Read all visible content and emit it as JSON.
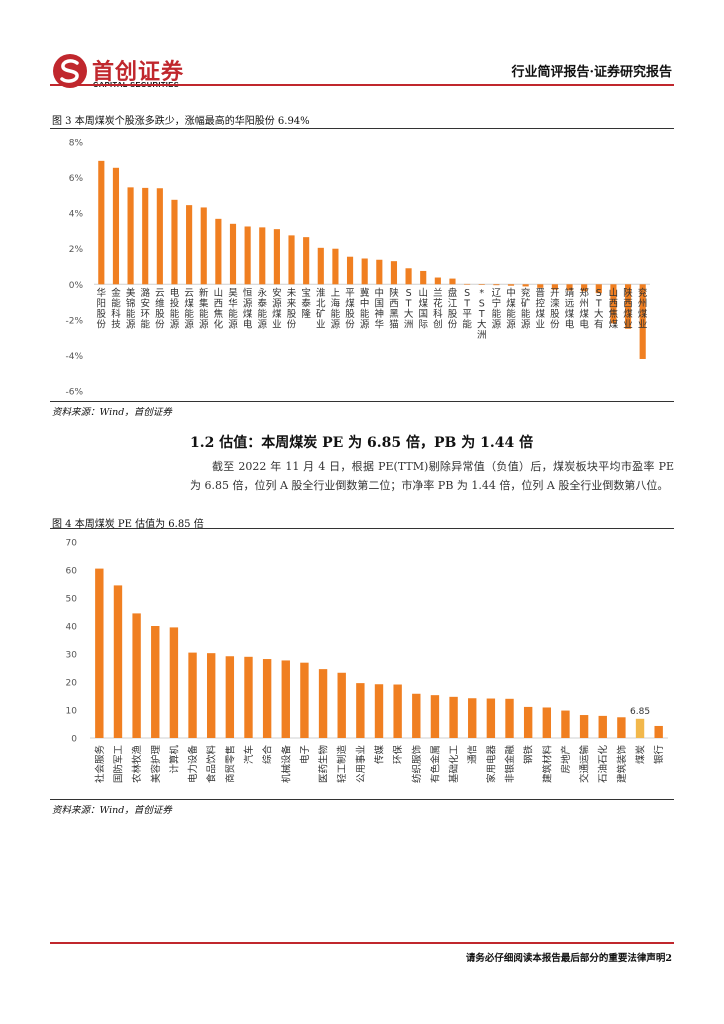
{
  "header": {
    "logo_cn": "首创证券",
    "logo_en": "CAPITAL SECURITIES",
    "report_type": "行业简评报告·证券研究报告"
  },
  "figure3": {
    "caption": "图 3 本周煤炭个股涨多跌少，涨幅最高的华阳股份 6.94%",
    "source": "资料来源：Wind，首创证券"
  },
  "section": {
    "heading": "1.2 估值：本周煤炭 PE 为 6.85 倍，PB 为 1.44 倍",
    "paragraph": "截至 2022 年 11 月 4 日，根据 PE(TTM)剔除异常值（负值）后，煤炭板块平均市盈率 PE 为 6.85 倍，位列 A 股全行业倒数第二位；市净率 PB 为 1.44 倍，位列 A 股全行业倒数第八位。"
  },
  "figure4": {
    "caption": "图 4 本周煤炭 PE 估值为 6.85 倍",
    "source": "资料来源：Wind，首创证券"
  },
  "footer": {
    "note": "请务必仔细阅读本报告最后部分的重要法律声明2"
  },
  "colors": {
    "bar": "#f07f21",
    "highlight_bar": "#f2b84b",
    "brand_red": "#c0272d"
  },
  "chart_data": [
    {
      "type": "bar",
      "title": "图 3 本周煤炭个股涨多跌少，涨幅最高的华阳股份 6.94%",
      "xlabel": "",
      "ylabel": "",
      "ylim": [
        -6,
        8
      ],
      "yticks": [
        "8%",
        "6%",
        "4%",
        "2%",
        "0%",
        "-2%",
        "-4%",
        "-6%"
      ],
      "categories": [
        "华阳股份",
        "金能科技",
        "美锦能源",
        "潞安环能",
        "云维股份",
        "电投能源",
        "云煤能源",
        "新集能源",
        "山西焦化",
        "昊华能源",
        "恒源煤电",
        "永泰能源",
        "安源煤业",
        "未来股份",
        "宝泰隆",
        "淮北矿业",
        "上海能源",
        "平煤股份",
        "冀中能源",
        "中国神华",
        "陕西黑猫",
        "ST大洲",
        "山煤国际",
        "兰花科创",
        "盘江股份",
        "ST平能",
        "*ST大洲",
        "辽宁能源",
        "中煤能源",
        "兖矿能源",
        "晋控煤业",
        "开滦股份",
        "靖远煤电",
        "郑州煤电",
        "ST大有",
        "山西焦煤",
        "陕西煤业",
        "兖州煤业"
      ],
      "values": [
        6.94,
        6.55,
        5.45,
        5.42,
        5.4,
        4.75,
        4.45,
        4.32,
        3.68,
        3.4,
        3.25,
        3.2,
        3.1,
        2.75,
        2.65,
        2.05,
        2.0,
        1.55,
        1.45,
        1.38,
        1.3,
        0.9,
        0.75,
        0.38,
        0.32,
        0.02,
        -0.02,
        -0.05,
        -0.08,
        -0.12,
        -0.2,
        -0.3,
        -0.35,
        -0.4,
        -0.5,
        -2.2,
        -2.5,
        -4.2
      ]
    },
    {
      "type": "bar",
      "title": "图 4 本周煤炭 PE 估值为 6.85 倍",
      "xlabel": "",
      "ylabel": "",
      "ylim": [
        0,
        70
      ],
      "yticks": [
        "70",
        "60",
        "50",
        "40",
        "30",
        "20",
        "10",
        "0"
      ],
      "categories": [
        "社会服务",
        "国防军工",
        "农林牧渔",
        "美容护理",
        "计算机",
        "电力设备",
        "食品饮料",
        "商贸零售",
        "汽车",
        "综合",
        "机械设备",
        "电子",
        "医药生物",
        "轻工制造",
        "公用事业",
        "传媒",
        "环保",
        "纺织服饰",
        "有色金属",
        "基础化工",
        "通信",
        "家用电器",
        "非银金融",
        "钢铁",
        "建筑材料",
        "房地产",
        "交通运输",
        "石油石化",
        "建筑装饰",
        "煤炭",
        "银行"
      ],
      "values": [
        60.5,
        54.5,
        44.5,
        40.0,
        39.5,
        30.5,
        30.3,
        29.2,
        29.0,
        28.2,
        27.7,
        26.9,
        24.6,
        23.3,
        19.6,
        19.2,
        19.1,
        15.8,
        15.3,
        14.7,
        14.2,
        14.1,
        14.0,
        11.1,
        10.9,
        9.8,
        8.2,
        7.9,
        7.4,
        6.85,
        4.3
      ],
      "highlight": "煤炭",
      "data_labels": [
        "6.85"
      ]
    }
  ]
}
